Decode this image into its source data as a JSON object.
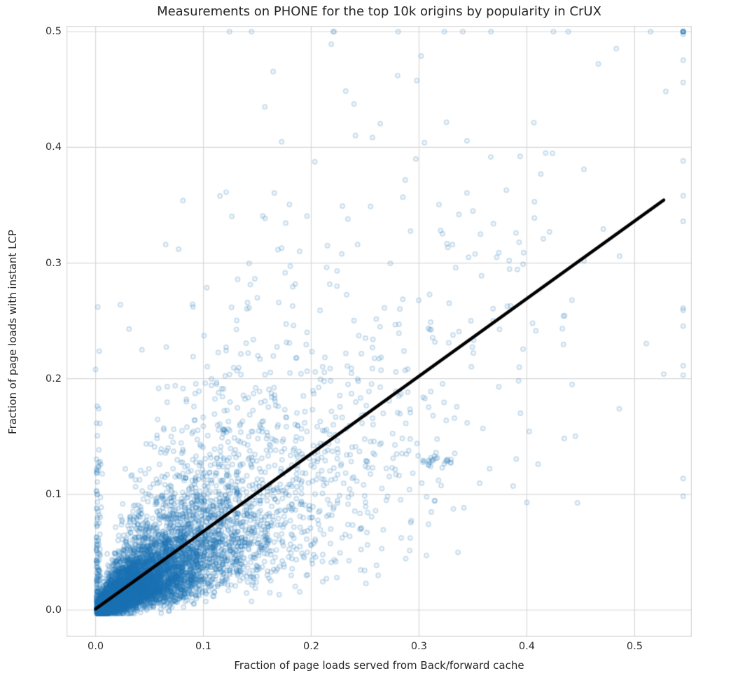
{
  "figure": {
    "background": "#ffffff",
    "text_color": "#262626",
    "tick_color": "#2e2e2e"
  },
  "chart_data": {
    "type": "scatter",
    "title": "Measurements on PHONE for the top 10k origins by popularity in CrUX",
    "xlabel": "Fraction of page loads served from Back/forward cache",
    "ylabel": "Fraction of page loads with instant LCP",
    "xlim": [
      -0.027,
      0.553
    ],
    "ylim": [
      -0.023,
      0.505
    ],
    "xticks": [
      0.0,
      0.1,
      0.2,
      0.3,
      0.4,
      0.5
    ],
    "yticks": [
      0.0,
      0.1,
      0.2,
      0.3,
      0.4,
      0.5
    ],
    "xtick_labels": [
      "0.0",
      "0.1",
      "0.2",
      "0.3",
      "0.4",
      "0.5"
    ],
    "ytick_labels": [
      "0.0",
      "0.1",
      "0.2",
      "0.3",
      "0.4",
      "0.5"
    ],
    "grid": true,
    "grid_color": "#d8d8d8",
    "grid_width": 1.2,
    "legend": "none",
    "n_points": 10000,
    "marker": {
      "shape": "circle",
      "color": "#1f77b4",
      "edge_alpha": 0.22,
      "face_alpha": 0.07,
      "radius": 3.1,
      "edge_width": 1.7
    },
    "trendline": {
      "x": [
        0.0,
        0.527
      ],
      "y": [
        0.001,
        0.3545
      ],
      "color": "#000000",
      "width": 4.5
    },
    "generator": {
      "seed": 1337,
      "x_clip": [
        0.0008,
        0.545
      ],
      "y_clip": [
        -0.003,
        0.5
      ],
      "components": [
        {
          "kind": "lognormal-xy",
          "count": 6950,
          "mu": -3.9,
          "sigma": 0.95,
          "ratio_mu": 0.52,
          "ratio_sigma": 0.62,
          "add_noise": 0.0035
        },
        {
          "kind": "lognormal-xy",
          "count": 2836,
          "mu": -2.45,
          "sigma": 0.7,
          "ratio_mu": 0.56,
          "ratio_sigma": 0.58,
          "add_noise": 0.006
        },
        {
          "kind": "zero-band",
          "count": 150,
          "x_sigma": 0.0025,
          "y_scale": 0.055,
          "y_max": 0.27
        },
        {
          "kind": "gauss-cluster",
          "count": 16,
          "cx": 0.312,
          "cy": 0.13,
          "sx": 0.0045,
          "sy": 0.0035
        },
        {
          "kind": "gauss-cluster",
          "count": 7,
          "cx": 0.327,
          "cy": 0.127,
          "sx": 0.003,
          "sy": 0.0025
        }
      ]
    },
    "notable_points": [
      [
        0.302,
        0.479
      ],
      [
        0.157,
        0.435
      ],
      [
        0.305,
        0.404
      ],
      [
        0.297,
        0.39
      ],
      [
        0.453,
        0.381
      ],
      [
        0.413,
        0.377
      ],
      [
        0.081,
        0.354
      ],
      [
        0.065,
        0.316
      ],
      [
        0.077,
        0.312
      ],
      [
        0.381,
        0.363
      ],
      [
        0.407,
        0.353
      ],
      [
        0.369,
        0.334
      ],
      [
        0.407,
        0.339
      ],
      [
        0.39,
        0.326
      ],
      [
        0.421,
        0.327
      ],
      [
        0.374,
        0.309
      ],
      [
        0.372,
        0.305
      ],
      [
        0.397,
        0.309
      ],
      [
        0.486,
        0.306
      ],
      [
        0.453,
        0.302
      ],
      [
        0.385,
        0.263
      ],
      [
        0.393,
        0.21
      ],
      [
        0.527,
        0.204
      ],
      [
        0.374,
        0.193
      ],
      [
        0.442,
        0.195
      ],
      [
        0.4,
        0.093
      ],
      [
        0.002,
        0.262
      ],
      [
        0.023,
        0.264
      ],
      [
        0.031,
        0.243
      ],
      [
        0.0,
        0.208
      ],
      [
        0.043,
        0.225
      ],
      [
        0.285,
        0.357
      ],
      [
        0.255,
        0.349
      ],
      [
        0.234,
        0.338
      ],
      [
        0.35,
        0.345
      ],
      [
        0.337,
        0.342
      ],
      [
        0.32,
        0.328
      ],
      [
        0.357,
        0.325
      ],
      [
        0.346,
        0.305
      ],
      [
        0.331,
        0.316
      ],
      [
        0.334,
        0.296
      ],
      [
        0.358,
        0.289
      ],
      [
        0.243,
        0.316
      ],
      [
        0.215,
        0.315
      ]
    ]
  }
}
